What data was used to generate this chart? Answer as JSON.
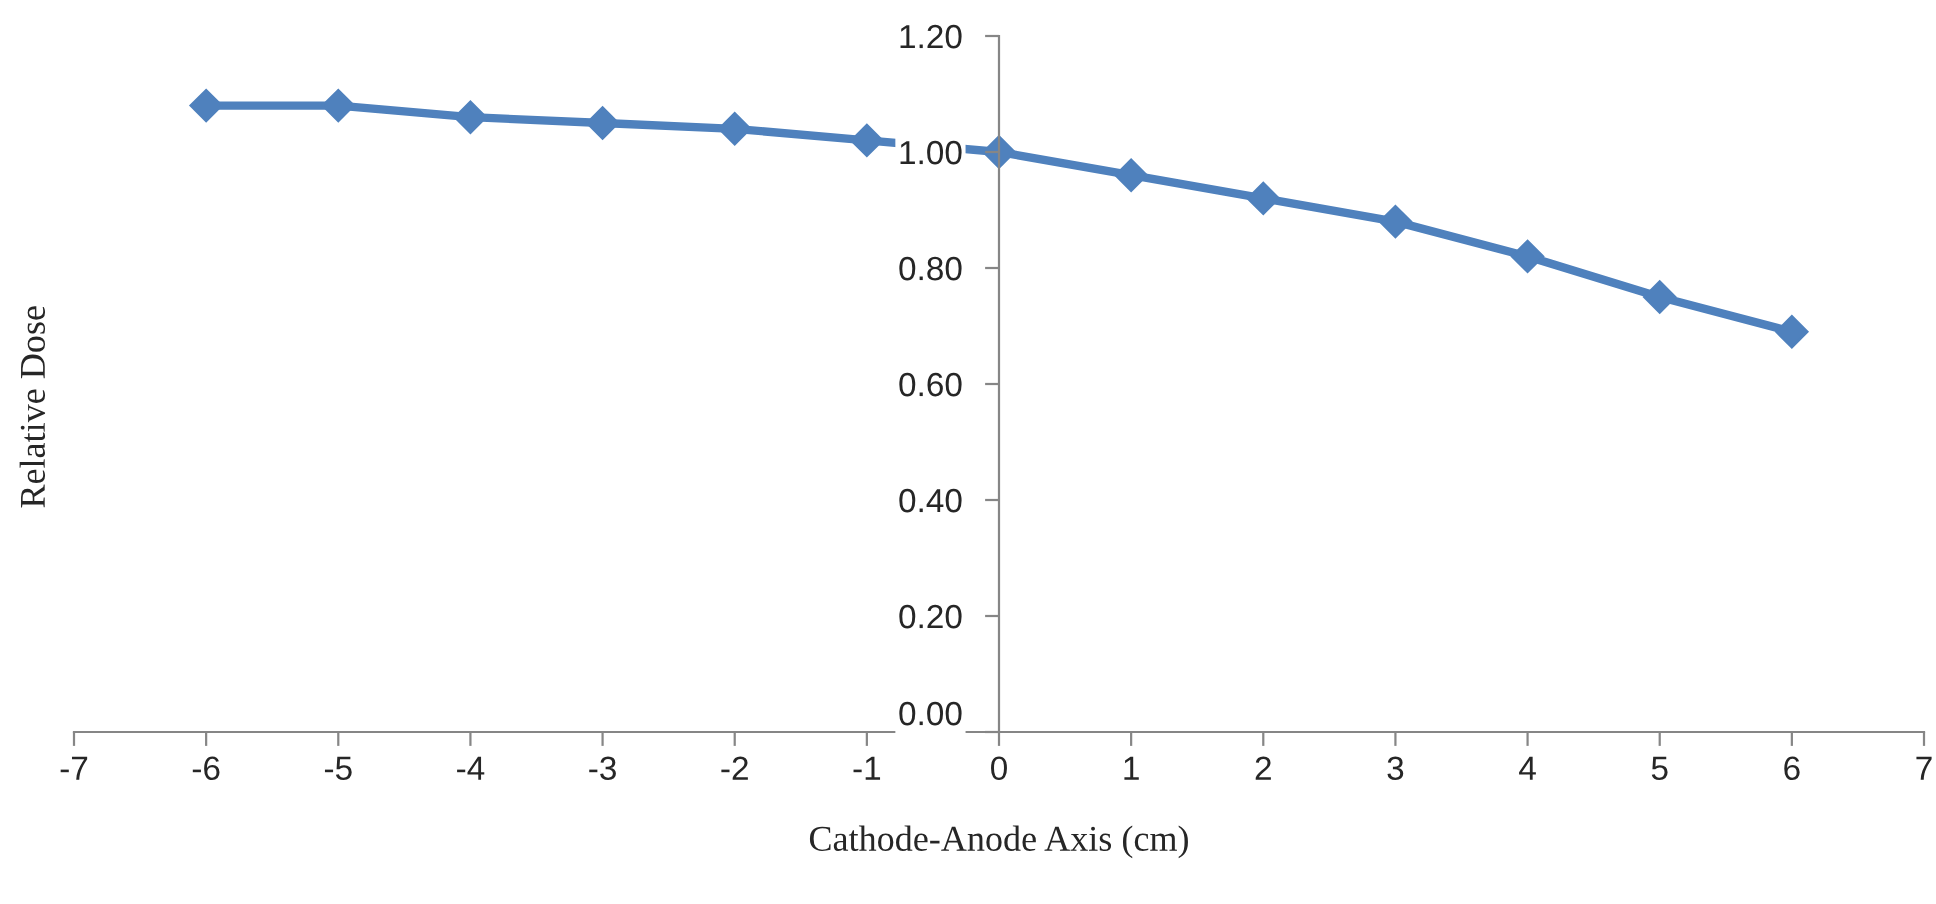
{
  "chart_data": {
    "type": "line",
    "xlabel": "Cathode-Anode Axis (cm)",
    "ylabel": "Relative Dose",
    "x": [
      -6,
      -5,
      -4,
      -3,
      -2,
      -1,
      0,
      1,
      2,
      3,
      4,
      5,
      6
    ],
    "series": [
      {
        "color": "#4f81bd",
        "values": [
          1.08,
          1.08,
          1.06,
          1.05,
          1.04,
          1.02,
          1.0,
          0.96,
          0.92,
          0.88,
          0.82,
          0.75,
          0.69
        ]
      }
    ],
    "xlim": [
      -7,
      7
    ],
    "xticks": [
      -7,
      -6,
      -5,
      -4,
      -3,
      -2,
      -1,
      0,
      1,
      2,
      3,
      4,
      5,
      6,
      7
    ],
    "ylim": [
      0,
      1.2
    ],
    "yticks": [
      {
        "value": 0,
        "label": "0.00"
      },
      {
        "value": 0.2,
        "label": "0.20"
      },
      {
        "value": 0.4,
        "label": "0.40"
      },
      {
        "value": 0.6,
        "label": "0.60"
      },
      {
        "value": 0.8,
        "label": "0.80"
      },
      {
        "value": 1.0,
        "label": "1.00"
      },
      {
        "value": 1.2,
        "label": "1.20"
      }
    ],
    "marker": "diamond",
    "line_style": "solid",
    "grid": false,
    "legend": false
  }
}
